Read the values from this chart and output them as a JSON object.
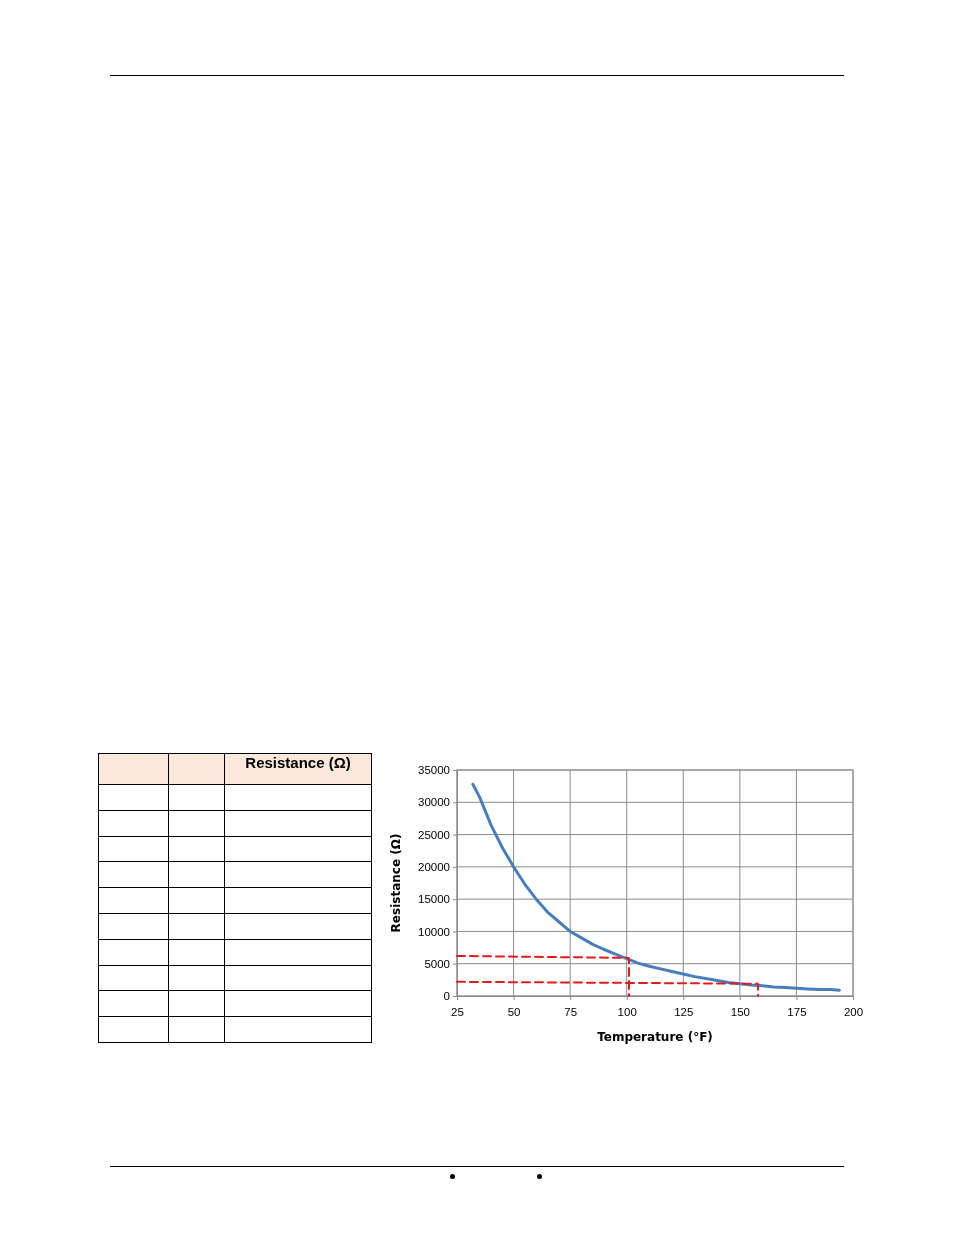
{
  "chart_data": [
    {
      "type": "other",
      "title": "Resistance (Ω)"
    },
    {
      "type": "line",
      "xlabel": "Temperature  (°F)",
      "ylabel": "Resistance  (Ω)",
      "xlim": [
        25,
        200
      ],
      "xticks": [
        25,
        50,
        75,
        100,
        125,
        150,
        175,
        200
      ],
      "ylim": [
        0,
        35000
      ],
      "yticks": [
        0,
        5000,
        10000,
        15000,
        20000,
        25000,
        30000,
        35000
      ],
      "grid": true,
      "series": [
        {
          "color": "#4a7ebb",
          "line_style": "solid",
          "x": [
            32,
            35,
            40,
            45,
            50,
            55,
            60,
            65,
            70,
            75,
            80,
            85,
            90,
            95,
            100,
            105,
            110,
            115,
            120,
            125,
            130,
            135,
            140,
            145,
            150,
            155,
            160,
            165,
            170,
            175,
            180,
            185,
            190,
            194
          ],
          "values": [
            32800,
            30800,
            26500,
            23000,
            20000,
            17300,
            15000,
            13000,
            11500,
            10000,
            9000,
            8000,
            7200,
            6500,
            5800,
            5100,
            4600,
            4200,
            3800,
            3400,
            3000,
            2700,
            2400,
            2100,
            1900,
            1700,
            1600,
            1400,
            1300,
            1200,
            1100,
            1000,
            1000,
            900
          ]
        },
        {
          "color": "#e31a1c",
          "line_style": "dashed",
          "x": [
            25,
            101,
            101
          ],
          "values": [
            6200,
            5900,
            0
          ]
        },
        {
          "color": "#e31a1c",
          "line_style": "dashed",
          "x": [
            25,
            158,
            158
          ],
          "values": [
            2200,
            1900,
            0
          ]
        }
      ]
    }
  ]
}
